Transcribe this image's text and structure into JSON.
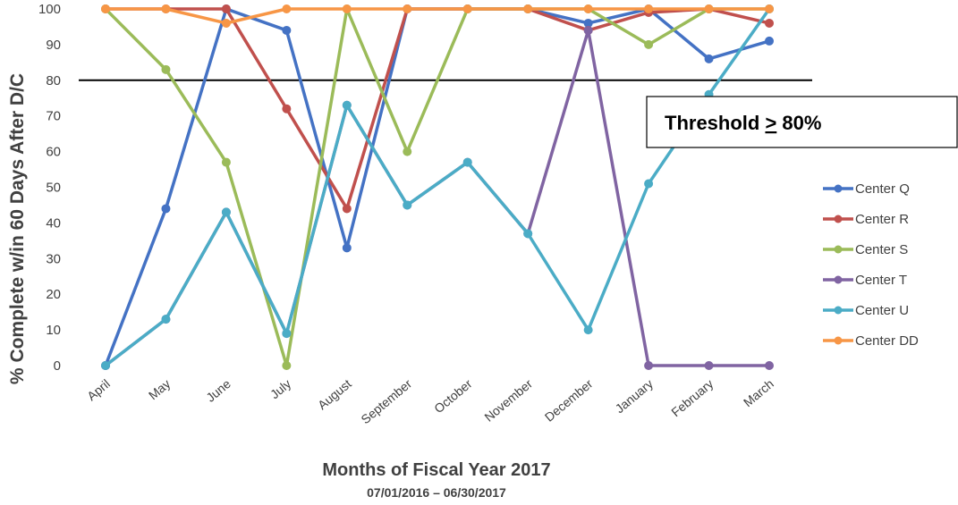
{
  "chart_data": {
    "type": "line",
    "categories": [
      "April",
      "May",
      "June",
      "July",
      "August",
      "September",
      "October",
      "November",
      "December",
      "January",
      "February",
      "March"
    ],
    "ylabel": "% Complete w/in 60 Days After D/C",
    "xlabel": "Months of Fiscal Year 2017",
    "xsublabel": "07/01/2016 – 06/30/2017",
    "ylim": [
      0,
      100
    ],
    "yticks": [
      0,
      10,
      20,
      30,
      40,
      50,
      60,
      70,
      80,
      90,
      100
    ],
    "grid": false,
    "legend_position": "right",
    "threshold": {
      "value": 80,
      "label_prefix": "Threshold ",
      "label_symbol": ">",
      "label_suffix": " 80%"
    },
    "series": [
      {
        "name": "Center Q",
        "color": "#4472C4",
        "values": [
          0,
          44,
          100,
          94,
          33,
          100,
          100,
          100,
          96,
          100,
          86,
          91
        ]
      },
      {
        "name": "Center R",
        "color": "#C0504D",
        "values": [
          100,
          100,
          100,
          72,
          44,
          100,
          100,
          100,
          94,
          99,
          100,
          96
        ]
      },
      {
        "name": "Center S",
        "color": "#9BBB59",
        "values": [
          100,
          83,
          57,
          0,
          100,
          60,
          100,
          100,
          100,
          90,
          100,
          100
        ]
      },
      {
        "name": "Center T",
        "color": "#8064A2",
        "values": [
          0,
          13,
          43,
          9,
          73,
          45,
          57,
          37,
          94,
          0,
          0,
          0
        ]
      },
      {
        "name": "Center U",
        "color": "#4BACC6",
        "values": [
          0,
          13,
          43,
          9,
          73,
          45,
          57,
          37,
          10,
          51,
          76,
          100
        ]
      },
      {
        "name": "Center DD",
        "color": "#F79646",
        "values": [
          100,
          100,
          96,
          100,
          100,
          100,
          100,
          100,
          100,
          100,
          100,
          100
        ]
      }
    ]
  }
}
